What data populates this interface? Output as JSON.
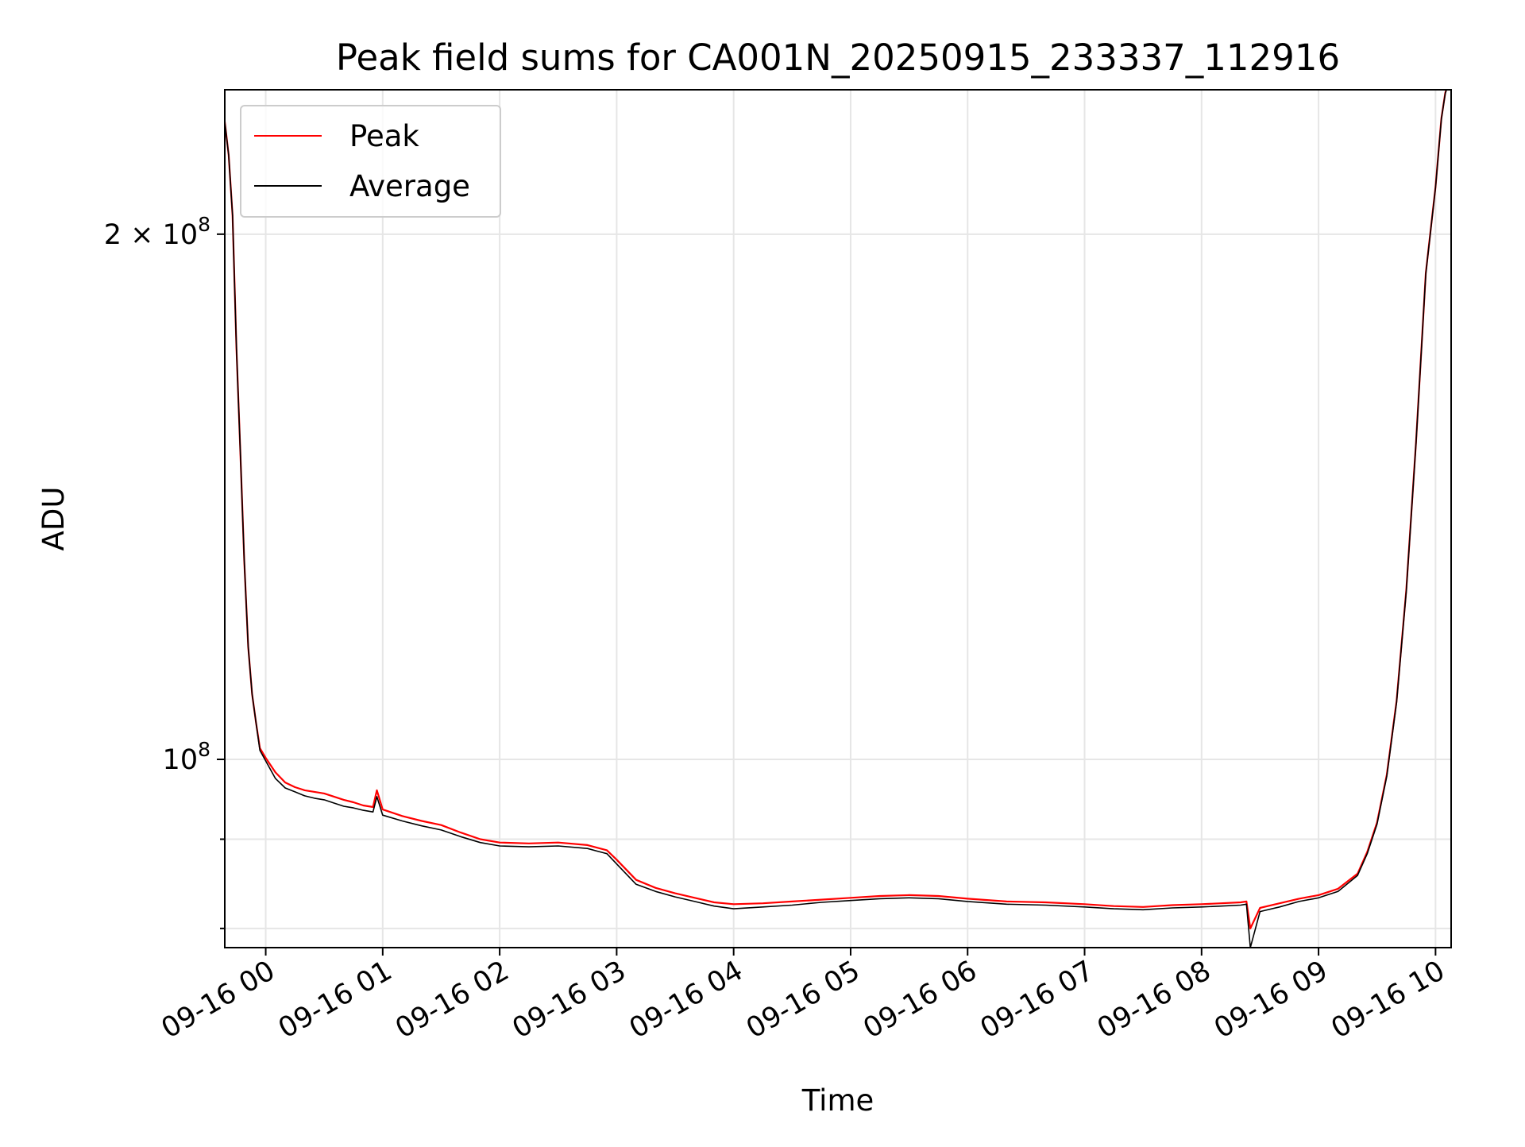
{
  "chart_data": {
    "type": "line",
    "title": "Peak field sums for CA001N_20250915_233337_112916",
    "xlabel": "Time",
    "ylabel": "ADU",
    "x_unit": "timestamp",
    "x_range": [
      "2025-09-15 23:39",
      "2025-09-16 10:08"
    ],
    "yscale": "log",
    "ylim": [
      78000000,
      242000000
    ],
    "grid": true,
    "legend_location": "upper left",
    "x_ticks": [
      {
        "value": "2025-09-16 00:00",
        "label": "09-16 00"
      },
      {
        "value": "2025-09-16 01:00",
        "label": "09-16 01"
      },
      {
        "value": "2025-09-16 02:00",
        "label": "09-16 02"
      },
      {
        "value": "2025-09-16 03:00",
        "label": "09-16 03"
      },
      {
        "value": "2025-09-16 04:00",
        "label": "09-16 04"
      },
      {
        "value": "2025-09-16 05:00",
        "label": "09-16 05"
      },
      {
        "value": "2025-09-16 06:00",
        "label": "09-16 06"
      },
      {
        "value": "2025-09-16 07:00",
        "label": "09-16 07"
      },
      {
        "value": "2025-09-16 08:00",
        "label": "09-16 08"
      },
      {
        "value": "2025-09-16 09:00",
        "label": "09-16 09"
      },
      {
        "value": "2025-09-16 10:00",
        "label": "09-16 10"
      }
    ],
    "y_major_ticks": [
      {
        "value": 100000000,
        "mantissa": "",
        "base": "10",
        "exponent": "8"
      },
      {
        "value": 200000000,
        "mantissa": "2 × ",
        "base": "10",
        "exponent": "8"
      }
    ],
    "y_minor_ticks": [
      80000000,
      90000000
    ],
    "series": [
      {
        "name": "Peak",
        "color": "#ff0000",
        "x": [
          "2025-09-15 23:39",
          "2025-09-15 23:41",
          "2025-09-15 23:43",
          "2025-09-15 23:45",
          "2025-09-15 23:47",
          "2025-09-15 23:49",
          "2025-09-15 23:51",
          "2025-09-15 23:53",
          "2025-09-15 23:55",
          "2025-09-15 23:57",
          "2025-09-16 00:00",
          "2025-09-16 00:05",
          "2025-09-16 00:10",
          "2025-09-16 00:15",
          "2025-09-16 00:20",
          "2025-09-16 00:25",
          "2025-09-16 00:30",
          "2025-09-16 00:35",
          "2025-09-16 00:40",
          "2025-09-16 00:45",
          "2025-09-16 00:50",
          "2025-09-16 00:55",
          "2025-09-16 00:57",
          "2025-09-16 01:00",
          "2025-09-16 01:10",
          "2025-09-16 01:20",
          "2025-09-16 01:30",
          "2025-09-16 01:40",
          "2025-09-16 01:50",
          "2025-09-16 02:00",
          "2025-09-16 02:15",
          "2025-09-16 02:30",
          "2025-09-16 02:45",
          "2025-09-16 02:50",
          "2025-09-16 02:55",
          "2025-09-16 03:00",
          "2025-09-16 03:10",
          "2025-09-16 03:20",
          "2025-09-16 03:30",
          "2025-09-16 03:40",
          "2025-09-16 03:50",
          "2025-09-16 04:00",
          "2025-09-16 04:15",
          "2025-09-16 04:30",
          "2025-09-16 04:45",
          "2025-09-16 05:00",
          "2025-09-16 05:15",
          "2025-09-16 05:30",
          "2025-09-16 05:45",
          "2025-09-16 06:00",
          "2025-09-16 06:20",
          "2025-09-16 06:40",
          "2025-09-16 07:00",
          "2025-09-16 07:15",
          "2025-09-16 07:30",
          "2025-09-16 07:45",
          "2025-09-16 08:00",
          "2025-09-16 08:10",
          "2025-09-16 08:20",
          "2025-09-16 08:23",
          "2025-09-16 08:25",
          "2025-09-16 08:30",
          "2025-09-16 08:40",
          "2025-09-16 08:50",
          "2025-09-16 09:00",
          "2025-09-16 09:10",
          "2025-09-16 09:20",
          "2025-09-16 09:25",
          "2025-09-16 09:30",
          "2025-09-16 09:35",
          "2025-09-16 09:40",
          "2025-09-16 09:45",
          "2025-09-16 09:50",
          "2025-09-16 09:55",
          "2025-09-16 10:00",
          "2025-09-16 10:03",
          "2025-09-16 10:05",
          "2025-09-16 10:06"
        ],
        "values": [
          232000000,
          222000000,
          205000000,
          172000000,
          150000000,
          130000000,
          116000000,
          109000000,
          105000000,
          101500000,
          100200000,
          98300000,
          97000000,
          96400000,
          96000000,
          95800000,
          95600000,
          95200000,
          94800000,
          94500000,
          94100000,
          93900000,
          96000000,
          93600000,
          92800000,
          92200000,
          91700000,
          90800000,
          90000000,
          89600000,
          89500000,
          89600000,
          89300000,
          89000000,
          88700000,
          87600000,
          85300000,
          84400000,
          83800000,
          83300000,
          82800000,
          82600000,
          82700000,
          82900000,
          83100000,
          83300000,
          83500000,
          83600000,
          83500000,
          83200000,
          82900000,
          82800000,
          82600000,
          82400000,
          82300000,
          82500000,
          82600000,
          82700000,
          82800000,
          82900000,
          80000000,
          82200000,
          82700000,
          83200000,
          83600000,
          84300000,
          86000000,
          88500000,
          92000000,
          98000000,
          108000000,
          125000000,
          152000000,
          190000000,
          213000000,
          233000000,
          241000000,
          243000000
        ]
      },
      {
        "name": "Average",
        "color": "#000000",
        "x": [
          "2025-09-15 23:39",
          "2025-09-15 23:41",
          "2025-09-15 23:43",
          "2025-09-15 23:45",
          "2025-09-15 23:47",
          "2025-09-15 23:49",
          "2025-09-15 23:51",
          "2025-09-15 23:53",
          "2025-09-15 23:55",
          "2025-09-15 23:57",
          "2025-09-16 00:00",
          "2025-09-16 00:05",
          "2025-09-16 00:10",
          "2025-09-16 00:15",
          "2025-09-16 00:20",
          "2025-09-16 00:25",
          "2025-09-16 00:30",
          "2025-09-16 00:35",
          "2025-09-16 00:40",
          "2025-09-16 00:45",
          "2025-09-16 00:50",
          "2025-09-16 00:55",
          "2025-09-16 00:57",
          "2025-09-16 01:00",
          "2025-09-16 01:10",
          "2025-09-16 01:20",
          "2025-09-16 01:30",
          "2025-09-16 01:40",
          "2025-09-16 01:50",
          "2025-09-16 02:00",
          "2025-09-16 02:15",
          "2025-09-16 02:30",
          "2025-09-16 02:45",
          "2025-09-16 02:50",
          "2025-09-16 02:55",
          "2025-09-16 03:00",
          "2025-09-16 03:10",
          "2025-09-16 03:20",
          "2025-09-16 03:30",
          "2025-09-16 03:40",
          "2025-09-16 03:50",
          "2025-09-16 04:00",
          "2025-09-16 04:15",
          "2025-09-16 04:30",
          "2025-09-16 04:45",
          "2025-09-16 05:00",
          "2025-09-16 05:15",
          "2025-09-16 05:30",
          "2025-09-16 05:45",
          "2025-09-16 06:00",
          "2025-09-16 06:20",
          "2025-09-16 06:40",
          "2025-09-16 07:00",
          "2025-09-16 07:15",
          "2025-09-16 07:30",
          "2025-09-16 07:45",
          "2025-09-16 08:00",
          "2025-09-16 08:10",
          "2025-09-16 08:20",
          "2025-09-16 08:23",
          "2025-09-16 08:25",
          "2025-09-16 08:30",
          "2025-09-16 08:40",
          "2025-09-16 08:50",
          "2025-09-16 09:00",
          "2025-09-16 09:10",
          "2025-09-16 09:20",
          "2025-09-16 09:25",
          "2025-09-16 09:30",
          "2025-09-16 09:35",
          "2025-09-16 09:40",
          "2025-09-16 09:45",
          "2025-09-16 09:50",
          "2025-09-16 09:55",
          "2025-09-16 10:00",
          "2025-09-16 10:03",
          "2025-09-16 10:05",
          "2025-09-16 10:06"
        ],
        "values": [
          232000000,
          222000000,
          205000000,
          172000000,
          150000000,
          130000000,
          116000000,
          109000000,
          105000000,
          101200000,
          99800000,
          97500000,
          96300000,
          95800000,
          95300000,
          95000000,
          94800000,
          94400000,
          94000000,
          93800000,
          93500000,
          93300000,
          95200000,
          92900000,
          92200000,
          91600000,
          91100000,
          90300000,
          89600000,
          89200000,
          89100000,
          89200000,
          88900000,
          88600000,
          88300000,
          87100000,
          84800000,
          84000000,
          83400000,
          82900000,
          82400000,
          82100000,
          82300000,
          82500000,
          82800000,
          83000000,
          83200000,
          83300000,
          83200000,
          82900000,
          82600000,
          82500000,
          82300000,
          82100000,
          82000000,
          82200000,
          82300000,
          82400000,
          82500000,
          82600000,
          78000000,
          81800000,
          82300000,
          82900000,
          83300000,
          84000000,
          85800000,
          88300000,
          91800000,
          97800000,
          107800000,
          124800000,
          151800000,
          189800000,
          212800000,
          232800000,
          240800000,
          242800000
        ]
      }
    ]
  }
}
